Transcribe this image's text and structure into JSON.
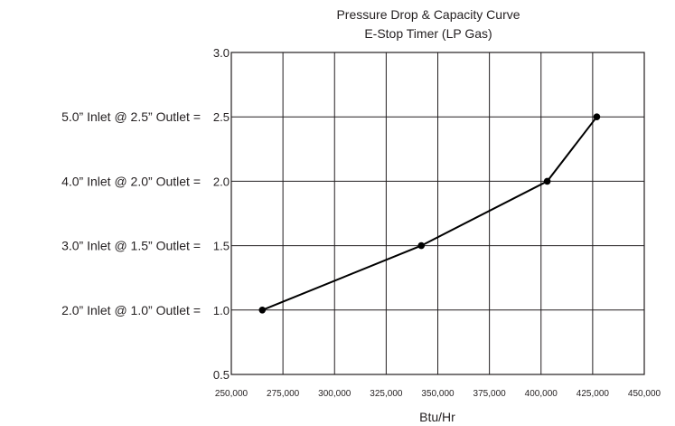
{
  "chart_data": {
    "type": "line",
    "title": "Pressure Drop & Capacity Curve",
    "subtitle": "E-Stop Timer (LP Gas)",
    "xlabel": "Btu/Hr",
    "ylabel": "",
    "xlim": [
      250000,
      450000
    ],
    "ylim": [
      0.5,
      3.0
    ],
    "x_ticks": [
      250000,
      275000,
      300000,
      325000,
      350000,
      375000,
      400000,
      425000,
      450000
    ],
    "x_tick_labels": [
      "250,000",
      "275,000",
      "300,000",
      "325,000",
      "350,000",
      "375,000",
      "400,000",
      "425,000",
      "450,000"
    ],
    "y_ticks": [
      0.5,
      1.0,
      1.5,
      2.0,
      2.5,
      3.0
    ],
    "y_tick_labels": [
      "0.5",
      "1.0",
      "1.5",
      "2.0",
      "2.5",
      "3.0"
    ],
    "y_row_labels": [
      {
        "y": 1.0,
        "text": "2.0” Inlet @ 1.0” Outlet ="
      },
      {
        "y": 1.5,
        "text": "3.0” Inlet @ 1.5” Outlet ="
      },
      {
        "y": 2.0,
        "text": "4.0” Inlet @ 2.0” Outlet ="
      },
      {
        "y": 2.5,
        "text": "5.0” Inlet @ 2.5” Outlet ="
      }
    ],
    "grid": true,
    "series": [
      {
        "x": [
          265000,
          342000,
          403000,
          427000
        ],
        "y": [
          1.0,
          1.5,
          2.0,
          2.5
        ]
      }
    ]
  }
}
